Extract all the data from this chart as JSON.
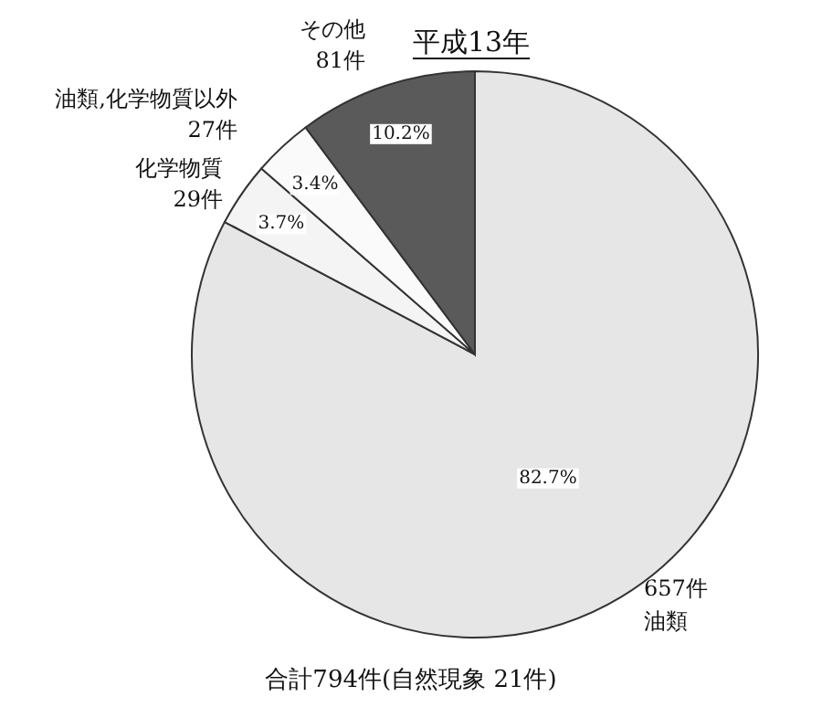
{
  "chart_data": {
    "type": "pie",
    "title": "平成13年",
    "categories": [
      "油類",
      "化学物質",
      "油類,化学物質以外",
      "その他"
    ],
    "values": [
      657,
      29,
      27,
      81
    ],
    "value_labels": [
      "657件",
      "29件",
      "27件",
      "81件"
    ],
    "colors": [
      "#e6e6e6",
      "#f4f4f4",
      "#fafafa",
      "#5a5a5a"
    ],
    "annotations": [
      {
        "text": "82.7%",
        "x": "油類"
      },
      {
        "text": "3.7%",
        "x": "化学物質"
      },
      {
        "text": "3.4%",
        "x": "油類,化学物質以外"
      },
      {
        "text": "10.2%",
        "x": "その他"
      },
      "合計794件(自然現象 21件)"
    ]
  }
}
